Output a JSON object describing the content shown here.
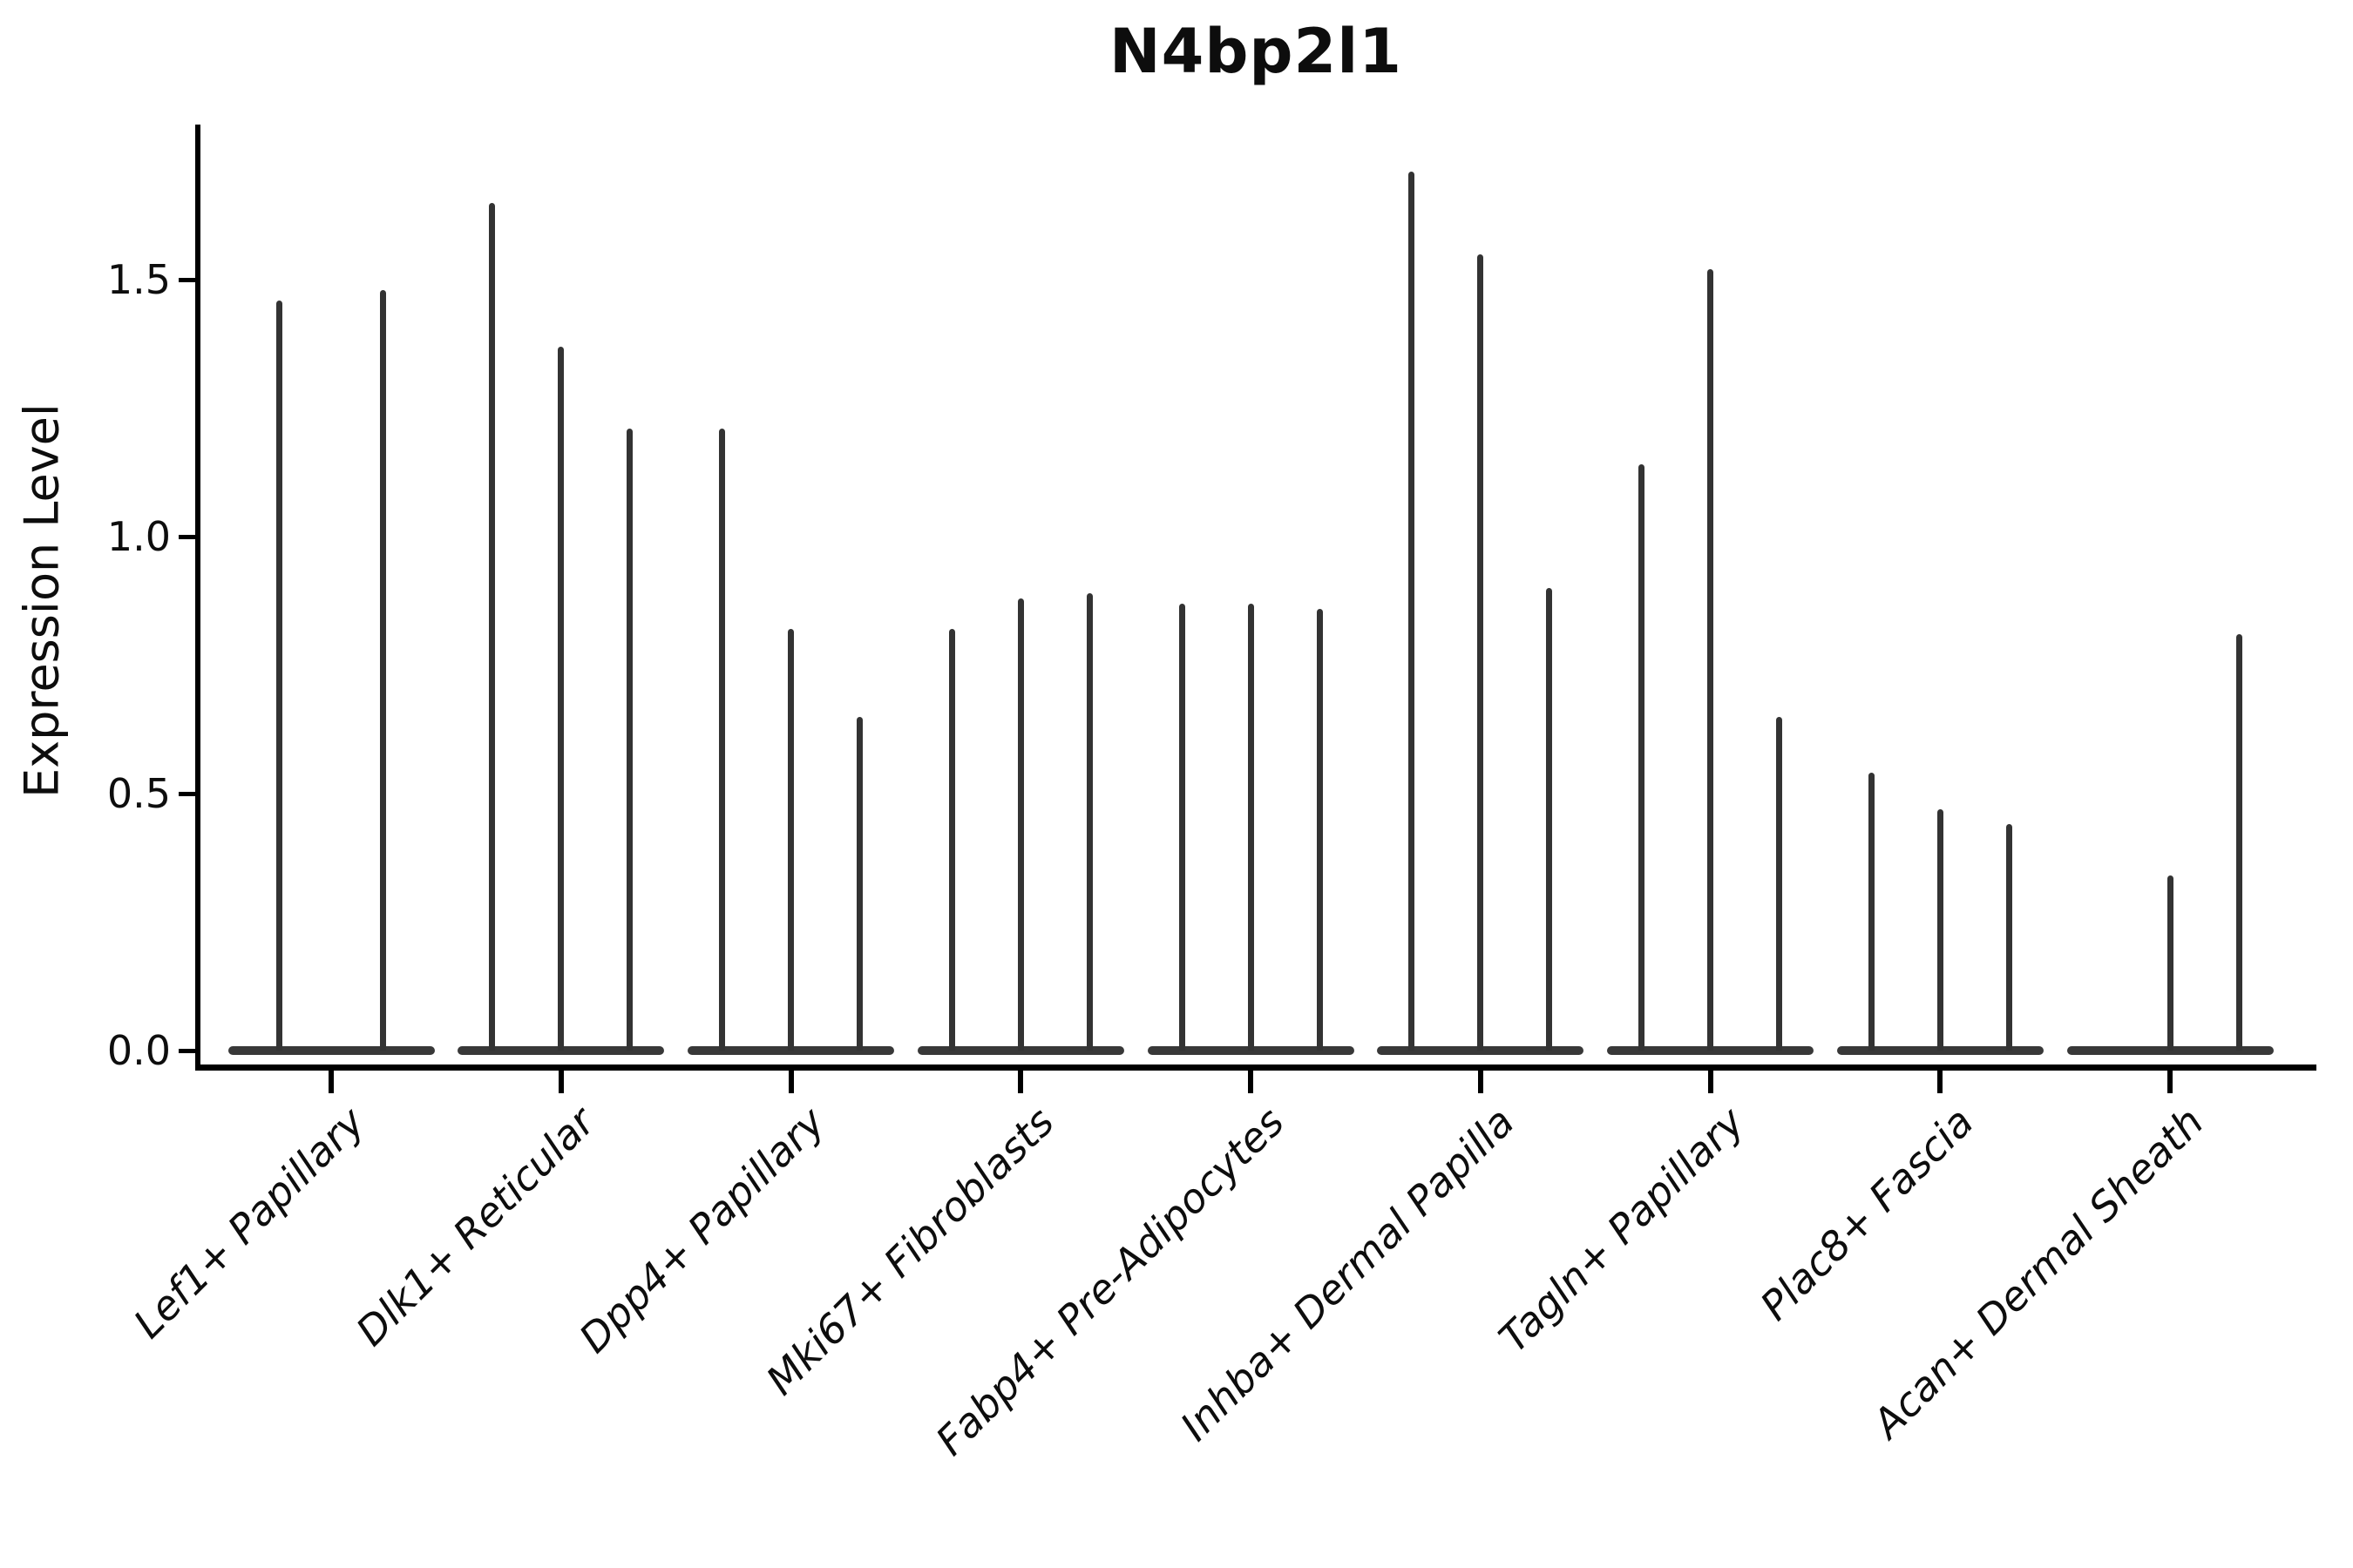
{
  "title": "N4bp2l1",
  "y_axis": {
    "label": "Expression Level",
    "tick_labels": [
      "0.0",
      "0.5",
      "1.0",
      "1.5"
    ]
  },
  "colors": {
    "violin_fill": "#383838",
    "axis": "#000000",
    "text": "#0d0d0d",
    "background": "#ffffff"
  },
  "chart_data": {
    "type": "violin",
    "title": "N4bp2l1",
    "xlabel": "",
    "ylabel": "Expression Level",
    "ylim": [
      -0.03,
      1.8
    ],
    "yticks": [
      0.0,
      0.5,
      1.0,
      1.5
    ],
    "grid": false,
    "legend": "none",
    "description": "Stacked-violin style expression plot; each category holds thin spike-shaped violins (max expression spike over a wide flat base of zeros).",
    "categories": [
      "Lef1+ Papillary",
      "Dlk1+ Reticular",
      "Dpp4+ Papillary",
      "Mki67+ Fibroblasts",
      "Fabp4+ Pre-Adipocytes",
      "Inhba+ Dermal Papilla",
      "Tagln+ Papillary",
      "Plac8+ Fascia",
      "Acan+ Dermal Sheath"
    ],
    "groups": [
      {
        "category": "Lef1+ Papillary",
        "violin_max_values": [
          1.46,
          1.48
        ]
      },
      {
        "category": "Dlk1+ Reticular",
        "violin_max_values": [
          1.65,
          1.37,
          1.21
        ]
      },
      {
        "category": "Dpp4+ Papillary",
        "violin_max_values": [
          1.21,
          0.82,
          0.65
        ]
      },
      {
        "category": "Mki67+ Fibroblasts",
        "violin_max_values": [
          0.82,
          0.88,
          0.89
        ]
      },
      {
        "category": "Fabp4+ Pre-Adipocytes",
        "violin_max_values": [
          0.87,
          0.87,
          0.86
        ]
      },
      {
        "category": "Inhba+ Dermal Papilla",
        "violin_max_values": [
          1.71,
          1.55,
          0.9
        ]
      },
      {
        "category": "Tagln+ Papillary",
        "violin_max_values": [
          1.14,
          1.52,
          0.65
        ]
      },
      {
        "category": "Plac8+ Fascia",
        "violin_max_values": [
          0.54,
          0.47,
          0.44
        ]
      },
      {
        "category": "Acan+ Dermal Sheath",
        "violin_max_values": [
          0.0,
          0.34,
          0.81
        ]
      }
    ],
    "baseline_note": "all violins have dominant density at 0 (flat wide base)"
  }
}
